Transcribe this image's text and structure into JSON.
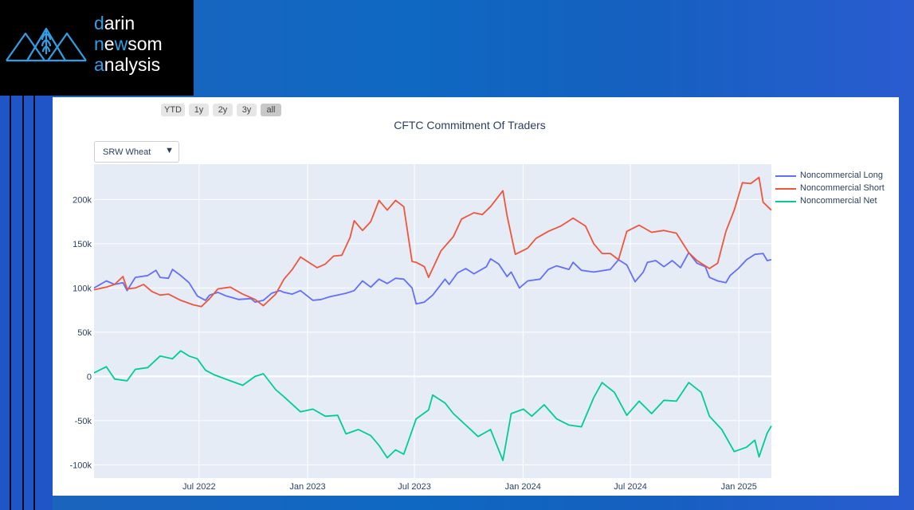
{
  "brand": {
    "line1_accent": "d",
    "line1_rest": "arin",
    "line2_accent1": "n",
    "line2_mid": "e",
    "line2_accent2": "w",
    "line2_rest": "som",
    "line3_accent": "a",
    "line3_rest": "nalysis",
    "icon": "wheat-mountains-logo-icon"
  },
  "range_selector": [
    {
      "label": "YTD",
      "active": false
    },
    {
      "label": "1y",
      "active": false
    },
    {
      "label": "2y",
      "active": false
    },
    {
      "label": "3y",
      "active": false
    },
    {
      "label": "all",
      "active": true
    }
  ],
  "dropdown": {
    "selected": "SRW Wheat",
    "icon": "triangle-down-icon"
  },
  "colors": {
    "plot_bg": "#e5ecf6",
    "long": "#636efa",
    "short": "#ef553b",
    "net": "#00cc96"
  },
  "chart_data": {
    "type": "line",
    "title": "CFTC Commitment Of Traders",
    "xlabel": "",
    "ylabel": "",
    "x_range": [
      "2022-01-04",
      "2025-02-25"
    ],
    "ylim": [
      -115000,
      240000
    ],
    "y_ticks": [
      {
        "value": 200000,
        "label": "200k"
      },
      {
        "value": 150000,
        "label": "150k"
      },
      {
        "value": 100000,
        "label": "100k"
      },
      {
        "value": 50000,
        "label": "50k"
      },
      {
        "value": 0,
        "label": "0"
      },
      {
        "value": -50000,
        "label": "-50k"
      },
      {
        "value": -100000,
        "label": "-100k"
      }
    ],
    "x_ticks": [
      {
        "date": "2022-07-01",
        "label": "Jul 2022"
      },
      {
        "date": "2023-01-01",
        "label": "Jan 2023"
      },
      {
        "date": "2023-07-01",
        "label": "Jul 2023"
      },
      {
        "date": "2024-01-01",
        "label": "Jan 2024"
      },
      {
        "date": "2024-07-01",
        "label": "Jul 2024"
      },
      {
        "date": "2025-01-01",
        "label": "Jan 2025"
      }
    ],
    "grid": true,
    "legend_position": "right",
    "series": [
      {
        "name": "Noncommercial Long",
        "color": "#636efa",
        "points": [
          [
            "2022-01-04",
            100000
          ],
          [
            "2022-01-25",
            108000
          ],
          [
            "2022-02-08",
            104000
          ],
          [
            "2022-02-22",
            106000
          ],
          [
            "2022-03-01",
            97000
          ],
          [
            "2022-03-15",
            112000
          ],
          [
            "2022-04-05",
            114000
          ],
          [
            "2022-04-19",
            120000
          ],
          [
            "2022-04-26",
            112000
          ],
          [
            "2022-05-10",
            111000
          ],
          [
            "2022-05-17",
            121000
          ],
          [
            "2022-05-31",
            114000
          ],
          [
            "2022-06-14",
            106000
          ],
          [
            "2022-06-28",
            91000
          ],
          [
            "2022-07-12",
            86000
          ],
          [
            "2022-07-19",
            92000
          ],
          [
            "2022-08-02",
            95000
          ],
          [
            "2022-08-16",
            91000
          ],
          [
            "2022-09-06",
            87000
          ],
          [
            "2022-09-27",
            88000
          ],
          [
            "2022-10-04",
            84000
          ],
          [
            "2022-10-18",
            86000
          ],
          [
            "2022-11-01",
            94000
          ],
          [
            "2022-11-15",
            97000
          ],
          [
            "2022-11-22",
            95000
          ],
          [
            "2022-12-06",
            93000
          ],
          [
            "2022-12-20",
            97000
          ],
          [
            "2023-01-10",
            86000
          ],
          [
            "2023-01-24",
            87000
          ],
          [
            "2023-02-07",
            90000
          ],
          [
            "2023-02-21",
            92000
          ],
          [
            "2023-03-07",
            94000
          ],
          [
            "2023-03-21",
            97000
          ],
          [
            "2023-04-04",
            108000
          ],
          [
            "2023-04-18",
            101000
          ],
          [
            "2023-05-02",
            110000
          ],
          [
            "2023-05-16",
            105000
          ],
          [
            "2023-05-30",
            111000
          ],
          [
            "2023-06-13",
            110000
          ],
          [
            "2023-06-27",
            100000
          ],
          [
            "2023-07-04",
            82000
          ],
          [
            "2023-07-18",
            84000
          ],
          [
            "2023-08-01",
            92000
          ],
          [
            "2023-08-15",
            104000
          ],
          [
            "2023-08-22",
            110000
          ],
          [
            "2023-08-29",
            104000
          ],
          [
            "2023-09-12",
            117000
          ],
          [
            "2023-09-26",
            122000
          ],
          [
            "2023-10-10",
            116000
          ],
          [
            "2023-10-31",
            124000
          ],
          [
            "2023-11-07",
            133000
          ],
          [
            "2023-11-21",
            127000
          ],
          [
            "2023-12-05",
            113000
          ],
          [
            "2023-12-12",
            118000
          ],
          [
            "2023-12-26",
            100000
          ],
          [
            "2024-01-09",
            108000
          ],
          [
            "2024-01-30",
            110000
          ],
          [
            "2024-02-13",
            121000
          ],
          [
            "2024-02-27",
            125000
          ],
          [
            "2024-03-19",
            121000
          ],
          [
            "2024-03-26",
            129000
          ],
          [
            "2024-04-09",
            120000
          ],
          [
            "2024-04-30",
            118000
          ],
          [
            "2024-05-28",
            121000
          ],
          [
            "2024-06-11",
            132000
          ],
          [
            "2024-06-25",
            126000
          ],
          [
            "2024-07-09",
            107000
          ],
          [
            "2024-07-23",
            118000
          ],
          [
            "2024-07-30",
            129000
          ],
          [
            "2024-08-13",
            131000
          ],
          [
            "2024-08-27",
            124000
          ],
          [
            "2024-09-10",
            131000
          ],
          [
            "2024-09-24",
            123000
          ],
          [
            "2024-10-08",
            140000
          ],
          [
            "2024-10-22",
            128000
          ],
          [
            "2024-11-05",
            124000
          ],
          [
            "2024-11-12",
            112000
          ],
          [
            "2024-11-26",
            108000
          ],
          [
            "2024-12-10",
            106000
          ],
          [
            "2024-12-17",
            114000
          ],
          [
            "2024-12-31",
            122000
          ],
          [
            "2025-01-14",
            132000
          ],
          [
            "2025-01-28",
            138000
          ],
          [
            "2025-02-11",
            139000
          ],
          [
            "2025-02-18",
            131000
          ],
          [
            "2025-02-25",
            132000
          ]
        ]
      },
      {
        "name": "Noncommercial Short",
        "color": "#ef553b",
        "points": [
          [
            "2022-01-04",
            98000
          ],
          [
            "2022-01-25",
            101000
          ],
          [
            "2022-02-08",
            104000
          ],
          [
            "2022-02-22",
            113000
          ],
          [
            "2022-03-01",
            99000
          ],
          [
            "2022-03-15",
            100000
          ],
          [
            "2022-03-29",
            104000
          ],
          [
            "2022-04-12",
            96000
          ],
          [
            "2022-04-26",
            92000
          ],
          [
            "2022-05-10",
            93000
          ],
          [
            "2022-05-31",
            86000
          ],
          [
            "2022-06-21",
            81000
          ],
          [
            "2022-07-05",
            79000
          ],
          [
            "2022-07-19",
            88000
          ],
          [
            "2022-08-02",
            99000
          ],
          [
            "2022-08-23",
            101000
          ],
          [
            "2022-09-13",
            93000
          ],
          [
            "2022-10-04",
            87000
          ],
          [
            "2022-10-18",
            80000
          ],
          [
            "2022-11-08",
            93000
          ],
          [
            "2022-11-22",
            110000
          ],
          [
            "2022-12-06",
            121000
          ],
          [
            "2022-12-20",
            135000
          ],
          [
            "2023-01-17",
            123000
          ],
          [
            "2023-01-31",
            127000
          ],
          [
            "2023-02-14",
            136000
          ],
          [
            "2023-02-28",
            137000
          ],
          [
            "2023-03-14",
            157000
          ],
          [
            "2023-03-21",
            176000
          ],
          [
            "2023-04-04",
            165000
          ],
          [
            "2023-04-18",
            175000
          ],
          [
            "2023-05-02",
            199000
          ],
          [
            "2023-05-16",
            188000
          ],
          [
            "2023-05-30",
            199000
          ],
          [
            "2023-06-13",
            192000
          ],
          [
            "2023-06-27",
            130000
          ],
          [
            "2023-07-04",
            129000
          ],
          [
            "2023-07-18",
            124000
          ],
          [
            "2023-07-25",
            112000
          ],
          [
            "2023-08-15",
            142000
          ],
          [
            "2023-09-05",
            158000
          ],
          [
            "2023-09-19",
            178000
          ],
          [
            "2023-10-10",
            185000
          ],
          [
            "2023-10-24",
            183000
          ],
          [
            "2023-11-07",
            192000
          ],
          [
            "2023-11-28",
            210000
          ],
          [
            "2023-12-05",
            182000
          ],
          [
            "2023-12-19",
            138000
          ],
          [
            "2024-01-09",
            145000
          ],
          [
            "2024-01-23",
            156000
          ],
          [
            "2024-02-13",
            164000
          ],
          [
            "2024-03-05",
            170000
          ],
          [
            "2024-03-26",
            179000
          ],
          [
            "2024-04-16",
            170000
          ],
          [
            "2024-04-30",
            150000
          ],
          [
            "2024-05-14",
            139000
          ],
          [
            "2024-05-28",
            139000
          ],
          [
            "2024-06-11",
            132000
          ],
          [
            "2024-06-25",
            164000
          ],
          [
            "2024-07-16",
            171000
          ],
          [
            "2024-08-06",
            163000
          ],
          [
            "2024-08-27",
            165000
          ],
          [
            "2024-09-17",
            162000
          ],
          [
            "2024-10-08",
            140000
          ],
          [
            "2024-10-22",
            131000
          ],
          [
            "2024-11-12",
            122000
          ],
          [
            "2024-11-26",
            128000
          ],
          [
            "2024-12-10",
            164000
          ],
          [
            "2024-12-24",
            188000
          ],
          [
            "2025-01-07",
            219000
          ],
          [
            "2025-01-21",
            218000
          ],
          [
            "2025-02-04",
            225000
          ],
          [
            "2025-02-11",
            197000
          ],
          [
            "2025-02-25",
            188000
          ]
        ]
      },
      {
        "name": "Noncommercial Net",
        "color": "#00cc96",
        "points": [
          [
            "2022-01-04",
            4000
          ],
          [
            "2022-01-25",
            11000
          ],
          [
            "2022-02-08",
            -3000
          ],
          [
            "2022-03-01",
            -5000
          ],
          [
            "2022-03-15",
            8000
          ],
          [
            "2022-04-05",
            10000
          ],
          [
            "2022-04-26",
            23000
          ],
          [
            "2022-05-17",
            20000
          ],
          [
            "2022-05-31",
            29000
          ],
          [
            "2022-06-14",
            23000
          ],
          [
            "2022-06-28",
            20000
          ],
          [
            "2022-07-12",
            7000
          ],
          [
            "2022-07-26",
            2000
          ],
          [
            "2022-08-23",
            -5000
          ],
          [
            "2022-09-13",
            -10000
          ],
          [
            "2022-10-04",
            0
          ],
          [
            "2022-10-18",
            3000
          ],
          [
            "2022-11-08",
            -15000
          ],
          [
            "2022-11-22",
            -23000
          ],
          [
            "2022-12-20",
            -40000
          ],
          [
            "2023-01-10",
            -37000
          ],
          [
            "2023-01-31",
            -45000
          ],
          [
            "2023-02-21",
            -44000
          ],
          [
            "2023-03-07",
            -65000
          ],
          [
            "2023-03-28",
            -60000
          ],
          [
            "2023-04-18",
            -67000
          ],
          [
            "2023-05-02",
            -78000
          ],
          [
            "2023-05-16",
            -92000
          ],
          [
            "2023-05-30",
            -83000
          ],
          [
            "2023-06-13",
            -88000
          ],
          [
            "2023-07-04",
            -48000
          ],
          [
            "2023-07-25",
            -38000
          ],
          [
            "2023-08-01",
            -21000
          ],
          [
            "2023-08-22",
            -30000
          ],
          [
            "2023-09-05",
            -42000
          ],
          [
            "2023-09-26",
            -55000
          ],
          [
            "2023-10-17",
            -68000
          ],
          [
            "2023-11-07",
            -60000
          ],
          [
            "2023-11-28",
            -95000
          ],
          [
            "2023-12-12",
            -42000
          ],
          [
            "2024-01-02",
            -37000
          ],
          [
            "2024-01-16",
            -45000
          ],
          [
            "2024-02-06",
            -32000
          ],
          [
            "2024-02-27",
            -48000
          ],
          [
            "2024-03-19",
            -55000
          ],
          [
            "2024-04-09",
            -57000
          ],
          [
            "2024-04-30",
            -24000
          ],
          [
            "2024-05-14",
            -7000
          ],
          [
            "2024-06-04",
            -18000
          ],
          [
            "2024-06-25",
            -44000
          ],
          [
            "2024-07-16",
            -28000
          ],
          [
            "2024-08-06",
            -42000
          ],
          [
            "2024-08-27",
            -27000
          ],
          [
            "2024-09-17",
            -28000
          ],
          [
            "2024-10-08",
            -7000
          ],
          [
            "2024-10-29",
            -18000
          ],
          [
            "2024-11-12",
            -45000
          ],
          [
            "2024-12-03",
            -60000
          ],
          [
            "2024-12-24",
            -85000
          ],
          [
            "2025-01-14",
            -80000
          ],
          [
            "2025-01-28",
            -72000
          ],
          [
            "2025-02-04",
            -91000
          ],
          [
            "2025-02-18",
            -64000
          ],
          [
            "2025-02-25",
            -56000
          ]
        ]
      }
    ]
  }
}
